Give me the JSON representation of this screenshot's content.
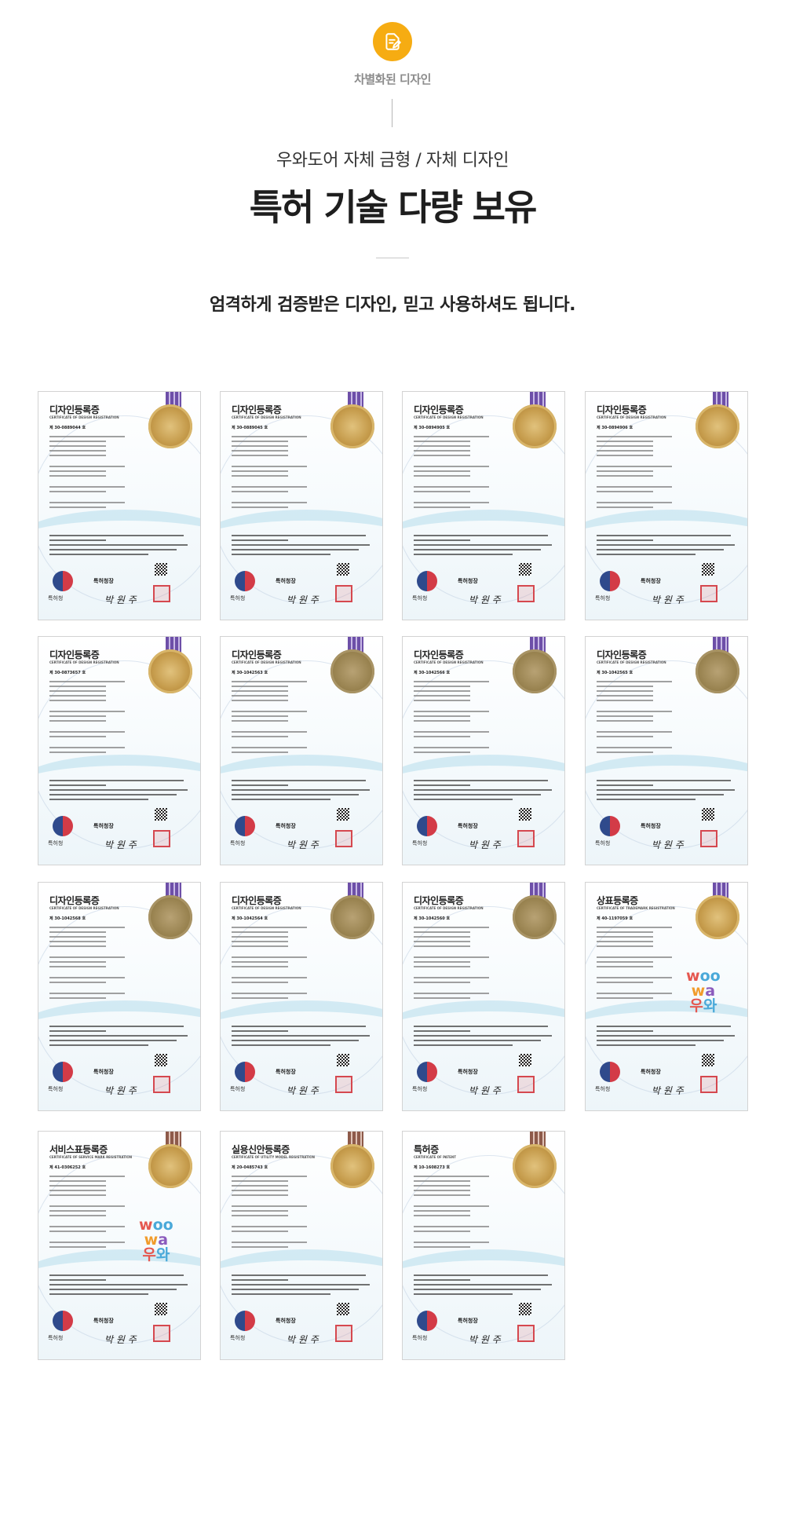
{
  "header": {
    "icon": "document-edit-icon",
    "label": "차별화된 디자인",
    "subtitle": "우와도어 자체 금형 / 자체 디자인",
    "title": "특허 기술 다량 보유",
    "tagline": "엄격하게 검증받은 디자인, 믿고 사용하셔도 됩니다.",
    "accent_color": "#f6ac12"
  },
  "certificates": [
    {
      "title": "디자인등록증",
      "subtitle": "CERTIFICATE OF DESIGN REGISTRATION",
      "number": "제 30-0889044 호",
      "office": "특허청장",
      "signature": "박 원 주",
      "org": "특허청",
      "mark": ""
    },
    {
      "title": "디자인등록증",
      "subtitle": "CERTIFICATE OF DESIGN REGISTRATION",
      "number": "제 30-0889045 호",
      "office": "특허청장",
      "signature": "박 원 주",
      "org": "특허청",
      "mark": ""
    },
    {
      "title": "디자인등록증",
      "subtitle": "CERTIFICATE OF DESIGN REGISTRATION",
      "number": "제 30-0894905 호",
      "office": "특허청장",
      "signature": "박 원 주",
      "org": "특허청",
      "mark": ""
    },
    {
      "title": "디자인등록증",
      "subtitle": "CERTIFICATE OF DESIGN REGISTRATION",
      "number": "제 30-0894906 호",
      "office": "특허청장",
      "signature": "박 원 주",
      "org": "특허청",
      "mark": ""
    },
    {
      "title": "디자인등록증",
      "subtitle": "CERTIFICATE OF DESIGN REGISTRATION",
      "number": "제 30-0873657 호",
      "office": "특허청장",
      "signature": "박 원 주",
      "org": "특허청",
      "mark": ""
    },
    {
      "title": "디자인등록증",
      "subtitle": "CERTIFICATE OF DESIGN REGISTRATION",
      "number": "제 30-1042563 호",
      "office": "특허청장",
      "signature": "박 원 주",
      "org": "특허청",
      "mark": ""
    },
    {
      "title": "디자인등록증",
      "subtitle": "CERTIFICATE OF DESIGN REGISTRATION",
      "number": "제 30-1042566 호",
      "office": "특허청장",
      "signature": "박 원 주",
      "org": "특허청",
      "mark": ""
    },
    {
      "title": "디자인등록증",
      "subtitle": "CERTIFICATE OF DESIGN REGISTRATION",
      "number": "제 30-1042565 호",
      "office": "특허청장",
      "signature": "박 원 주",
      "org": "특허청",
      "mark": ""
    },
    {
      "title": "디자인등록증",
      "subtitle": "CERTIFICATE OF DESIGN REGISTRATION",
      "number": "제 30-1042568 호",
      "office": "특허청장",
      "signature": "박 원 주",
      "org": "특허청",
      "mark": ""
    },
    {
      "title": "디자인등록증",
      "subtitle": "CERTIFICATE OF DESIGN REGISTRATION",
      "number": "제 30-1042564 호",
      "office": "특허청장",
      "signature": "박 원 주",
      "org": "특허청",
      "mark": ""
    },
    {
      "title": "디자인등록증",
      "subtitle": "CERTIFICATE OF DESIGN REGISTRATION",
      "number": "제 30-1042560 호",
      "office": "특허청장",
      "signature": "박 원 주",
      "org": "특허청",
      "mark": ""
    },
    {
      "title": "상표등록증",
      "subtitle": "CERTIFICATE OF TRADEMARK REGISTRATION",
      "number": "제 40-1197059 호",
      "office": "특허청장",
      "signature": "박 원 주",
      "org": "특허청",
      "mark": "woowa-logo"
    },
    {
      "title": "서비스표등록증",
      "subtitle": "CERTIFICATE OF SERVICE MARK REGISTRATION",
      "number": "제 41-0306252 호",
      "office": "특허청장",
      "signature": "박 원 주",
      "org": "특허청",
      "mark": "woowa-logo"
    },
    {
      "title": "실용신안등록증",
      "subtitle": "CERTIFICATE OF UTILITY MODEL REGISTRATION",
      "number": "제 20-0485743 호",
      "office": "특허청장",
      "signature": "박 원 주",
      "org": "특허청",
      "mark": ""
    },
    {
      "title": "특허증",
      "subtitle": "CERTIFICATE OF PATENT",
      "number": "제 10-1608273 호",
      "office": "특허청장",
      "signature": "박 원 주",
      "org": "특허청",
      "mark": ""
    }
  ]
}
